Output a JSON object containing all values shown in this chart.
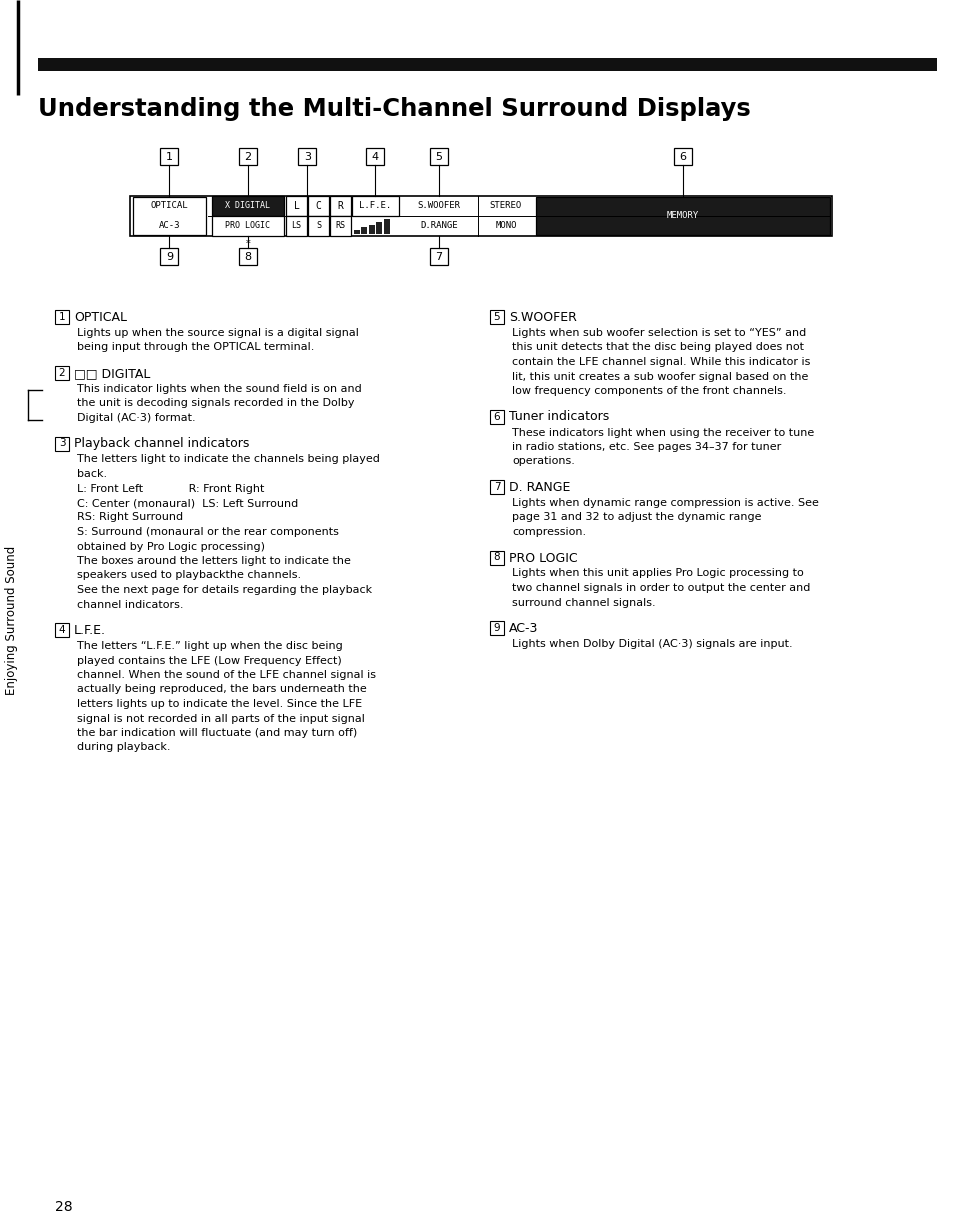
{
  "title": "Understanding the Multi-Channel Surround Displays",
  "page_number": "28",
  "sidebar_text": "Enjoying Surround Sound",
  "fig_width": 9.54,
  "fig_height": 12.28,
  "dpi": 100,
  "top_bar_color": "#111111",
  "bg_color": "#ffffff",
  "entries_left": [
    {
      "number": "1",
      "heading": "OPTICAL",
      "heading_bold": false,
      "body_lines": [
        "Lights up when the source signal is a digital signal",
        "being input through the OPTICAL terminal."
      ]
    },
    {
      "number": "2",
      "heading": "□□ DIGITAL",
      "heading_bold": false,
      "body_lines": [
        "This indicator lights when the sound field is on and",
        "the unit is decoding signals recorded in the Dolby",
        "Digital (AC·3) format."
      ]
    },
    {
      "number": "3",
      "heading": "Playback channel indicators",
      "heading_bold": false,
      "body_lines": [
        "The letters light to indicate the channels being played",
        "back.",
        "L: Front Left             R: Front Right",
        "C: Center (monaural)  LS: Left Surround",
        "RS: Right Surround",
        "S: Surround (monaural or the rear components",
        "obtained by Pro Logic processing)",
        "The boxes around the letters light to indicate the",
        "speakers used to playback​the channels.",
        "See the next page for details regarding the playback",
        "channel indicators."
      ]
    },
    {
      "number": "4",
      "heading": "L.F.E.",
      "heading_bold": false,
      "body_lines": [
        "The letters “L.F.E.” light up when the disc being",
        "played contains the LFE (Low Frequency Effect)",
        "channel. When the sound of the LFE channel signal is",
        "actually being reproduced, the bars underneath the",
        "letters lights up to indicate the level. Since the LFE",
        "signal is not recorded in all parts of the input signal",
        "the bar indication will fluctuate (and may turn off)",
        "during playback."
      ]
    }
  ],
  "entries_right": [
    {
      "number": "5",
      "heading": "S.WOOFER",
      "heading_bold": false,
      "body_lines": [
        "Lights when sub woofer selection is set to “YES” and",
        "this unit detects that the disc being played does not",
        "contain the LFE channel signal. While this indicator is",
        "lit, this unit creates a sub woofer signal based on the",
        "low frequency components of the front channels."
      ]
    },
    {
      "number": "6",
      "heading": "Tuner indicators",
      "heading_bold": false,
      "body_lines": [
        "These indicators light when using the receiver to tune",
        "in radio stations, etc. See pages 34–37 for tuner",
        "operations."
      ]
    },
    {
      "number": "7",
      "heading": "D. RANGE",
      "heading_bold": false,
      "body_lines": [
        "Lights when dynamic range compression is active. See",
        "page 31 and 32 to adjust the dynamic range",
        "compression."
      ]
    },
    {
      "number": "8",
      "heading": "PRO LOGIC",
      "heading_bold": false,
      "body_lines": [
        "Lights when this unit applies Pro Logic processing to",
        "two channel signals in order to output the center and",
        "surround channel signals."
      ]
    },
    {
      "number": "9",
      "heading": "AC-3",
      "heading_bold": false,
      "body_lines": [
        "Lights when Dolby Digital (AC·3) signals are input."
      ]
    }
  ]
}
